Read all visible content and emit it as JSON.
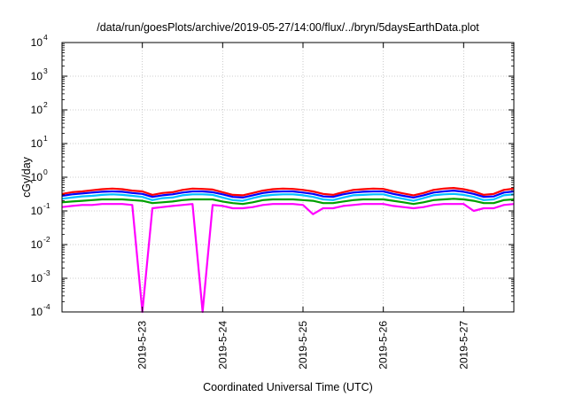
{
  "chart_data": {
    "type": "line",
    "title": "/data/run/goesPlots/archive/2019-05-27/14:00/flux/../bryn/5daysEarthData.plot",
    "xlabel": "Coordinated Universal Time (UTC)",
    "ylabel": "cGy/day",
    "y_scale": "log",
    "ylim": [
      0.0001,
      10000
    ],
    "yticks": [
      {
        "value": 0.0001,
        "mantissa": "10",
        "exp": "-4"
      },
      {
        "value": 0.001,
        "mantissa": "10",
        "exp": "-3"
      },
      {
        "value": 0.01,
        "mantissa": "10",
        "exp": "-2"
      },
      {
        "value": 0.1,
        "mantissa": "10",
        "exp": "-1"
      },
      {
        "value": 1,
        "mantissa": "10",
        "exp": "0"
      },
      {
        "value": 10,
        "mantissa": "10",
        "exp": "1"
      },
      {
        "value": 100,
        "mantissa": "10",
        "exp": "2"
      },
      {
        "value": 1000,
        "mantissa": "10",
        "exp": "3"
      },
      {
        "value": 10000,
        "mantissa": "10",
        "exp": "4"
      }
    ],
    "xlim": [
      "2019-05-22T00:00",
      "2019-05-27T15:00"
    ],
    "xticks": [
      {
        "date": "2019-05-23",
        "label": "2019-5-23"
      },
      {
        "date": "2019-05-24",
        "label": "2019-5-24"
      },
      {
        "date": "2019-05-25",
        "label": "2019-5-25"
      },
      {
        "date": "2019-05-26",
        "label": "2019-5-26"
      },
      {
        "date": "2019-05-27",
        "label": "2019-5-27"
      }
    ],
    "x_step_hours": 3,
    "x": [
      "2019-05-22T00:00",
      "2019-05-22T03:00",
      "2019-05-22T06:00",
      "2019-05-22T09:00",
      "2019-05-22T12:00",
      "2019-05-22T15:00",
      "2019-05-22T18:00",
      "2019-05-22T21:00",
      "2019-05-23T00:00",
      "2019-05-23T03:00",
      "2019-05-23T06:00",
      "2019-05-23T09:00",
      "2019-05-23T12:00",
      "2019-05-23T15:00",
      "2019-05-23T18:00",
      "2019-05-23T21:00",
      "2019-05-24T00:00",
      "2019-05-24T03:00",
      "2019-05-24T06:00",
      "2019-05-24T09:00",
      "2019-05-24T12:00",
      "2019-05-24T15:00",
      "2019-05-24T18:00",
      "2019-05-24T21:00",
      "2019-05-25T00:00",
      "2019-05-25T03:00",
      "2019-05-25T06:00",
      "2019-05-25T09:00",
      "2019-05-25T12:00",
      "2019-05-25T15:00",
      "2019-05-25T18:00",
      "2019-05-25T21:00",
      "2019-05-26T00:00",
      "2019-05-26T03:00",
      "2019-05-26T06:00",
      "2019-05-26T09:00",
      "2019-05-26T12:00",
      "2019-05-26T15:00",
      "2019-05-26T18:00",
      "2019-05-26T21:00",
      "2019-05-27T00:00",
      "2019-05-27T03:00",
      "2019-05-27T06:00",
      "2019-05-27T09:00",
      "2019-05-27T12:00",
      "2019-05-27T15:00"
    ],
    "series": [
      {
        "color": "#ff0000",
        "values": [
          0.32,
          0.36,
          0.38,
          0.41,
          0.44,
          0.46,
          0.44,
          0.4,
          0.38,
          0.3,
          0.34,
          0.36,
          0.42,
          0.46,
          0.45,
          0.43,
          0.36,
          0.3,
          0.29,
          0.34,
          0.4,
          0.44,
          0.46,
          0.45,
          0.42,
          0.38,
          0.32,
          0.3,
          0.36,
          0.42,
          0.44,
          0.46,
          0.45,
          0.38,
          0.33,
          0.29,
          0.34,
          0.42,
          0.46,
          0.48,
          0.44,
          0.38,
          0.3,
          0.32,
          0.42,
          0.46
        ]
      },
      {
        "color": "#0000ff",
        "values": [
          0.28,
          0.31,
          0.33,
          0.35,
          0.37,
          0.38,
          0.37,
          0.34,
          0.32,
          0.26,
          0.29,
          0.31,
          0.35,
          0.38,
          0.38,
          0.36,
          0.31,
          0.26,
          0.25,
          0.29,
          0.34,
          0.37,
          0.38,
          0.38,
          0.35,
          0.32,
          0.27,
          0.26,
          0.31,
          0.35,
          0.37,
          0.38,
          0.38,
          0.32,
          0.28,
          0.25,
          0.29,
          0.35,
          0.38,
          0.4,
          0.37,
          0.32,
          0.26,
          0.27,
          0.35,
          0.38
        ]
      },
      {
        "color": "#00bfff",
        "values": [
          0.23,
          0.25,
          0.27,
          0.28,
          0.3,
          0.31,
          0.3,
          0.28,
          0.26,
          0.21,
          0.24,
          0.25,
          0.29,
          0.31,
          0.31,
          0.3,
          0.25,
          0.21,
          0.2,
          0.24,
          0.28,
          0.3,
          0.31,
          0.31,
          0.29,
          0.26,
          0.22,
          0.21,
          0.25,
          0.29,
          0.3,
          0.31,
          0.31,
          0.26,
          0.23,
          0.2,
          0.24,
          0.29,
          0.31,
          0.32,
          0.3,
          0.26,
          0.21,
          0.22,
          0.29,
          0.31
        ]
      },
      {
        "color": "#00a000",
        "values": [
          0.18,
          0.19,
          0.2,
          0.21,
          0.22,
          0.22,
          0.22,
          0.21,
          0.2,
          0.17,
          0.18,
          0.19,
          0.21,
          0.22,
          0.22,
          0.22,
          0.19,
          0.17,
          0.16,
          0.18,
          0.21,
          0.22,
          0.22,
          0.22,
          0.21,
          0.2,
          0.17,
          0.17,
          0.19,
          0.21,
          0.22,
          0.22,
          0.22,
          0.2,
          0.18,
          0.16,
          0.18,
          0.21,
          0.22,
          0.23,
          0.22,
          0.2,
          0.17,
          0.17,
          0.21,
          0.22
        ]
      },
      {
        "color": "#ff00ff",
        "values": [
          0.13,
          0.14,
          0.15,
          0.15,
          0.16,
          0.16,
          0.16,
          0.15,
          0.0001,
          0.12,
          0.13,
          0.14,
          0.15,
          0.16,
          0.0001,
          0.15,
          0.14,
          0.12,
          0.12,
          0.13,
          0.15,
          0.16,
          0.16,
          0.16,
          0.15,
          0.08,
          0.12,
          0.12,
          0.14,
          0.15,
          0.16,
          0.16,
          0.16,
          0.14,
          0.13,
          0.12,
          0.13,
          0.15,
          0.16,
          0.16,
          0.16,
          0.1,
          0.12,
          0.12,
          0.15,
          0.16
        ]
      }
    ],
    "grid": true,
    "legend": "none"
  }
}
